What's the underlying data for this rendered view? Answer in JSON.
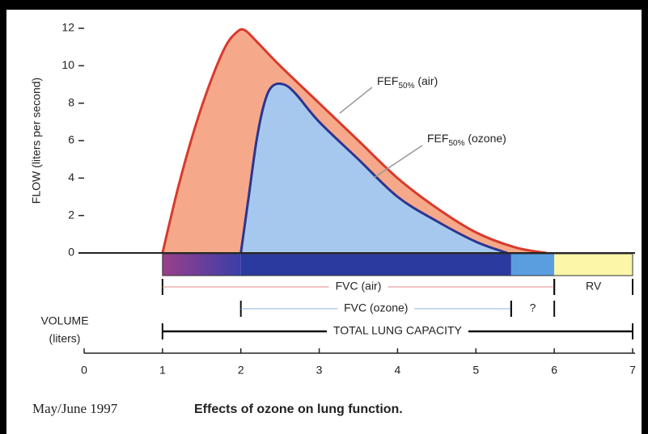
{
  "chart_data": {
    "type": "area",
    "ylabel": "FLOW (liters per second)",
    "xlabel": [
      "VOLUME",
      "(liters)"
    ],
    "ylim": [
      0,
      12
    ],
    "yticks": [
      0,
      2,
      4,
      6,
      8,
      10,
      12
    ],
    "xlim": [
      0,
      7
    ],
    "xticks": [
      0,
      1,
      2,
      3,
      4,
      5,
      6,
      7
    ],
    "series": [
      {
        "color": "#d93a2b",
        "fill": "#f5a98a",
        "x": [
          1,
          1.2,
          1.4,
          1.6,
          1.8,
          1.95,
          2.05,
          2.2,
          2.5,
          3,
          3.5,
          4,
          4.5,
          5,
          5.5,
          5.9
        ],
        "values": [
          0,
          3.5,
          6.5,
          9,
          11,
          11.8,
          11.9,
          11.3,
          10,
          8,
          6,
          4,
          2.4,
          1.1,
          0.3,
          0
        ]
      },
      {
        "color": "#2b3590",
        "fill": "#a6c8ee",
        "x": [
          2,
          2.1,
          2.2,
          2.3,
          2.4,
          2.55,
          2.7,
          3,
          3.5,
          4,
          4.5,
          5,
          5.4
        ],
        "values": [
          0,
          3,
          6,
          8,
          8.9,
          9,
          8.5,
          7,
          5,
          3,
          1.7,
          0.6,
          0
        ]
      }
    ],
    "annotations": [
      {
        "text": "FEF",
        "sub": "50%",
        "suffix": " (air)"
      },
      {
        "text": "FEF",
        "sub": "50%",
        "suffix": " (ozone)"
      }
    ],
    "brackets": [
      {
        "label": "FVC (air)",
        "range": [
          1,
          6
        ]
      },
      {
        "label": "RV",
        "range": [
          6,
          7
        ]
      },
      {
        "label": "FVC (ozone)",
        "range": [
          2,
          5.45
        ]
      },
      {
        "label": "?",
        "range": [
          5.45,
          6
        ]
      },
      {
        "label": "TOTAL LUNG CAPACITY",
        "range": [
          1,
          7
        ]
      }
    ],
    "source": "May/June 1997",
    "caption": "Effects of ozone on lung function."
  }
}
